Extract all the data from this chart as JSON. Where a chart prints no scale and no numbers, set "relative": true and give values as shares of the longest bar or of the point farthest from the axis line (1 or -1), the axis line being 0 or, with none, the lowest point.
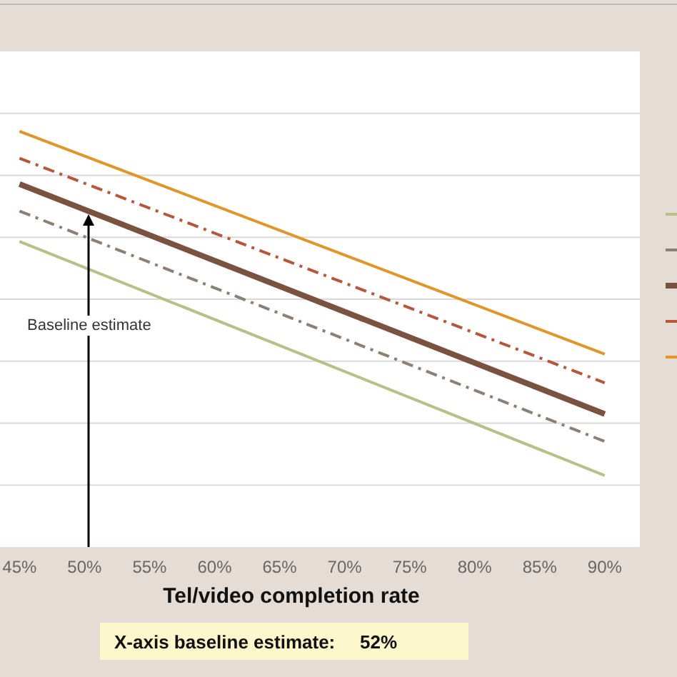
{
  "chart_data": {
    "type": "line",
    "relative": true,
    "x": [
      45,
      90
    ],
    "xlim": [
      43.5,
      92.7
    ],
    "xticks": [
      {
        "value": 45,
        "label": "45%"
      },
      {
        "value": 50,
        "label": "50%"
      },
      {
        "value": 55,
        "label": "55%"
      },
      {
        "value": 60,
        "label": "60%"
      },
      {
        "value": 65,
        "label": "65%"
      },
      {
        "value": 70,
        "label": "70%"
      },
      {
        "value": 75,
        "label": "75%"
      },
      {
        "value": 80,
        "label": "80%"
      },
      {
        "value": 85,
        "label": "85%"
      },
      {
        "value": 90,
        "label": "90%"
      }
    ],
    "xlabel": "Tel/video completion rate",
    "series": [
      {
        "color": "#b8c08a",
        "values": [
          0.735,
          0.172
        ],
        "line_style": "solid"
      },
      {
        "color": "#8c7f74",
        "values": [
          0.808,
          0.254
        ],
        "line_style": "dashed"
      },
      {
        "color": "#7a5240",
        "values": [
          0.873,
          0.32
        ],
        "line_style": "solid"
      },
      {
        "color": "#b5573a",
        "values": [
          0.935,
          0.395
        ],
        "line_style": "dashed"
      },
      {
        "color": "#e0962a",
        "values": [
          1,
          0.464
        ],
        "line_style": "solid"
      }
    ],
    "annotations": [
      "Baseline estimate",
      "X-axis baseline estimate:",
      "52%"
    ],
    "grid": "y"
  }
}
